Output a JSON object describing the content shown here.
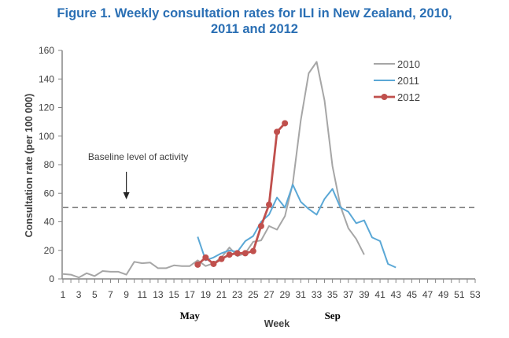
{
  "chart_data": {
    "type": "line",
    "title_line1": "Figure 1. Weekly consultation rates for ILI in New Zealand, 2010,",
    "title_line2": "2011 and 2012",
    "xlabel": "Week",
    "ylabel": "Consultation rate (per 100 000)",
    "xlim": [
      1,
      53
    ],
    "ylim": [
      0,
      160
    ],
    "x_ticks": [
      1,
      3,
      5,
      7,
      9,
      11,
      13,
      15,
      17,
      19,
      21,
      23,
      25,
      27,
      29,
      31,
      33,
      35,
      37,
      39,
      41,
      43,
      45,
      47,
      49,
      51,
      53
    ],
    "y_ticks": [
      0,
      20,
      40,
      60,
      80,
      100,
      120,
      140,
      160
    ],
    "grid": false,
    "legend_position": "top-right",
    "month_markers": [
      {
        "label": "May",
        "week": 18
      },
      {
        "label": "Sep",
        "week": 36
      }
    ],
    "baseline": {
      "value": 50,
      "label": "Baseline level of activity",
      "arrow_week": 9
    },
    "series": [
      {
        "name": "2010",
        "color": "#a6a6a6",
        "markers": false,
        "x": [
          1,
          2,
          3,
          4,
          5,
          6,
          7,
          8,
          9,
          10,
          11,
          12,
          13,
          14,
          15,
          16,
          17,
          18,
          19,
          20,
          21,
          22,
          23,
          24,
          25,
          26,
          27,
          28,
          29,
          30,
          31,
          32,
          33,
          34,
          35,
          36,
          37,
          38,
          39
        ],
        "values": [
          3.5,
          3,
          1,
          4,
          2,
          5.5,
          5,
          5,
          3,
          12,
          11,
          11.5,
          7.5,
          7.5,
          9.5,
          9,
          9,
          13,
          9,
          11,
          15,
          22,
          16,
          18,
          26,
          27,
          37,
          34.5,
          44,
          67,
          111,
          144,
          152,
          125,
          79,
          51,
          35.5,
          28,
          17
        ]
      },
      {
        "name": "2011",
        "color": "#5ba8d6",
        "markers": false,
        "x": [
          18,
          19,
          20,
          21,
          22,
          23,
          24,
          25,
          26,
          27,
          28,
          29,
          30,
          31,
          32,
          33,
          34,
          35,
          36,
          37,
          38,
          39,
          40,
          41,
          42,
          43
        ],
        "values": [
          29.5,
          13,
          15,
          18,
          20,
          19,
          26.5,
          30,
          40,
          45,
          57,
          50,
          66,
          54,
          49,
          45,
          56,
          63,
          50,
          47,
          39,
          41,
          29,
          26.5,
          10.5,
          8
        ]
      },
      {
        "name": "2012",
        "color": "#c0504d",
        "markers": true,
        "x": [
          18,
          19,
          20,
          21,
          22,
          23,
          24,
          25,
          26,
          27,
          28,
          29
        ],
        "values": [
          10,
          15,
          10.5,
          14,
          17,
          18,
          18,
          19.5,
          37,
          52,
          103,
          109
        ]
      }
    ]
  }
}
